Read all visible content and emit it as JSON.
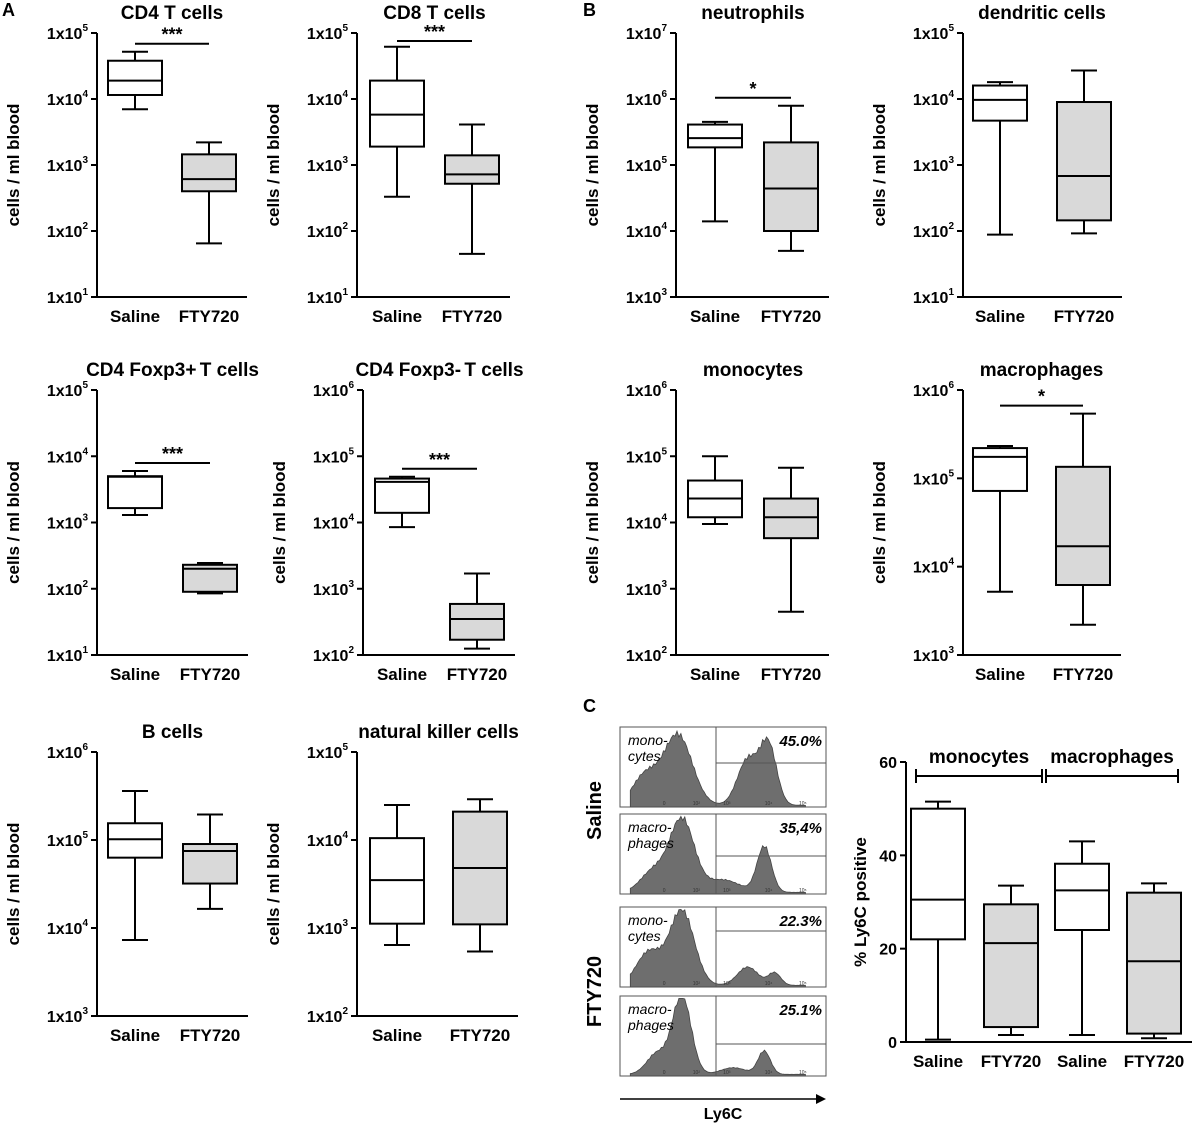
{
  "panel_letters": [
    "A",
    "B",
    "C"
  ],
  "chart_data": [
    {
      "type": "box",
      "panel": "A",
      "title": "CD4 T cells",
      "ylabel": "cells / ml blood",
      "yscale": "log",
      "ylim_exp": [
        1,
        5
      ],
      "ytick_labels": [
        "1x10^1",
        "1x10^2",
        "1x10^3",
        "1x10^4",
        "1x10^5"
      ],
      "categories": [
        "Saline",
        "FTY720"
      ],
      "series": [
        {
          "name": "Saline",
          "min": 7000,
          "q1": 11500,
          "median": 19000,
          "q3": 38000,
          "max": 52000,
          "fill": "#ffffff"
        },
        {
          "name": "FTY720",
          "min": 65,
          "q1": 400,
          "median": 610,
          "q3": 1450,
          "max": 2200,
          "fill": "#d9d9d9"
        }
      ],
      "significance": "***"
    },
    {
      "type": "box",
      "panel": "A",
      "title": "CD8 T cells",
      "ylabel": "cells / ml blood",
      "yscale": "log",
      "ylim_exp": [
        1,
        5
      ],
      "ytick_labels": [
        "1x10^1",
        "1x10^2",
        "1x10^3",
        "1x10^4",
        "1x10^5"
      ],
      "categories": [
        "Saline",
        "FTY720"
      ],
      "series": [
        {
          "name": "Saline",
          "min": 330,
          "q1": 1900,
          "median": 5800,
          "q3": 19000,
          "max": 62000,
          "fill": "#ffffff"
        },
        {
          "name": "FTY720",
          "min": 45,
          "q1": 520,
          "median": 720,
          "q3": 1400,
          "max": 4100,
          "fill": "#d9d9d9"
        }
      ],
      "significance": "***"
    },
    {
      "type": "box",
      "panel": "B",
      "title": "neutrophils",
      "ylabel": "cells / ml blood",
      "yscale": "log",
      "ylim_exp": [
        3,
        7
      ],
      "ytick_labels": [
        "1x10^3",
        "1x10^4",
        "1x10^5",
        "1x10^6",
        "1x10^7"
      ],
      "categories": [
        "Saline",
        "FTY720"
      ],
      "series": [
        {
          "name": "Saline",
          "min": 14000,
          "q1": 185000,
          "median": 255000,
          "q3": 410000,
          "max": 450000,
          "fill": "#ffffff"
        },
        {
          "name": "FTY720",
          "min": 5000,
          "q1": 10000,
          "median": 44000,
          "q3": 220000,
          "max": 790000,
          "fill": "#d9d9d9"
        }
      ],
      "significance": "*"
    },
    {
      "type": "box",
      "panel": "B",
      "title": "dendritic cells",
      "ylabel": "cells / ml blood",
      "yscale": "log",
      "ylim_exp": [
        1,
        5
      ],
      "ytick_labels": [
        "1x10^1",
        "1x10^2",
        "1x10^3",
        "1x10^4",
        "1x10^5"
      ],
      "categories": [
        "Saline",
        "FTY720"
      ],
      "series": [
        {
          "name": "Saline",
          "min": 88,
          "q1": 4700,
          "median": 9700,
          "q3": 16000,
          "max": 18000,
          "fill": "#ffffff"
        },
        {
          "name": "FTY720",
          "min": 92,
          "q1": 145,
          "median": 680,
          "q3": 9000,
          "max": 27000,
          "fill": "#d9d9d9"
        }
      ],
      "significance": ""
    },
    {
      "type": "box",
      "panel": "A",
      "title": "CD4 Foxp3+ T cells",
      "ylabel": "cells / ml blood",
      "yscale": "log",
      "ylim_exp": [
        1,
        5
      ],
      "ytick_labels": [
        "1x10^1",
        "1x10^2",
        "1x10^3",
        "1x10^4",
        "1x10^5"
      ],
      "categories": [
        "Saline",
        "FTY720"
      ],
      "series": [
        {
          "name": "Saline",
          "min": 1300,
          "q1": 1650,
          "median": 4900,
          "q3": 5000,
          "max": 6000,
          "fill": "#ffffff"
        },
        {
          "name": "FTY720",
          "min": 85,
          "q1": 90,
          "median": 200,
          "q3": 230,
          "max": 245,
          "fill": "#d9d9d9"
        }
      ],
      "significance": "***"
    },
    {
      "type": "box",
      "panel": "A",
      "title": "CD4 Foxp3- T cells",
      "ylabel": "cells / ml blood",
      "yscale": "log",
      "ylim_exp": [
        2,
        6
      ],
      "ytick_labels": [
        "1x10^2",
        "1x10^3",
        "1x10^4",
        "1x10^5",
        "1x10^6"
      ],
      "categories": [
        "Saline",
        "FTY720"
      ],
      "series": [
        {
          "name": "Saline",
          "min": 8500,
          "q1": 14000,
          "median": 41000,
          "q3": 46000,
          "max": 49000,
          "fill": "#ffffff"
        },
        {
          "name": "FTY720",
          "min": 125,
          "q1": 170,
          "median": 350,
          "q3": 590,
          "max": 1700,
          "fill": "#d9d9d9"
        }
      ],
      "significance": "***"
    },
    {
      "type": "box",
      "panel": "B",
      "title": "monocytes",
      "ylabel": "cells / ml blood",
      "yscale": "log",
      "ylim_exp": [
        2,
        6
      ],
      "ytick_labels": [
        "1x10^2",
        "1x10^3",
        "1x10^4",
        "1x10^5",
        "1x10^6"
      ],
      "categories": [
        "Saline",
        "FTY720"
      ],
      "series": [
        {
          "name": "Saline",
          "min": 9500,
          "q1": 12000,
          "median": 23000,
          "q3": 43000,
          "max": 100000,
          "fill": "#ffffff"
        },
        {
          "name": "FTY720",
          "min": 450,
          "q1": 5800,
          "median": 12000,
          "q3": 23000,
          "max": 67000,
          "fill": "#d9d9d9"
        }
      ],
      "significance": ""
    },
    {
      "type": "box",
      "panel": "B",
      "title": "macrophages",
      "ylabel": "cells / ml blood",
      "yscale": "log",
      "ylim_exp": [
        3,
        6
      ],
      "ytick_labels": [
        "1x10^3",
        "1x10^4",
        "1x10^5",
        "1x10^6"
      ],
      "categories": [
        "Saline",
        "FTY720"
      ],
      "series": [
        {
          "name": "Saline",
          "min": 5200,
          "q1": 72000,
          "median": 175000,
          "q3": 220000,
          "max": 232000,
          "fill": "#ffffff"
        },
        {
          "name": "FTY720",
          "min": 2200,
          "q1": 6200,
          "median": 17000,
          "q3": 135000,
          "max": 540000,
          "fill": "#d9d9d9"
        }
      ],
      "significance": "*"
    },
    {
      "type": "box",
      "panel": "A",
      "title": "B cells",
      "ylabel": "cells / ml blood",
      "yscale": "log",
      "ylim_exp": [
        3,
        6
      ],
      "ytick_labels": [
        "1x10^3",
        "1x10^4",
        "1x10^5",
        "1x10^6"
      ],
      "categories": [
        "Saline",
        "FTY720"
      ],
      "series": [
        {
          "name": "Saline",
          "min": 7300,
          "q1": 63000,
          "median": 102000,
          "q3": 155000,
          "max": 360000,
          "fill": "#ffffff"
        },
        {
          "name": "FTY720",
          "min": 16500,
          "q1": 32000,
          "median": 75000,
          "q3": 90000,
          "max": 195000,
          "fill": "#d9d9d9"
        }
      ],
      "significance": ""
    },
    {
      "type": "box",
      "panel": "A",
      "title": "natural killer cells",
      "ylabel": "cells / ml blood",
      "yscale": "log",
      "ylim_exp": [
        2,
        5
      ],
      "ytick_labels": [
        "1x10^2",
        "1x10^3",
        "1x10^4",
        "1x10^5"
      ],
      "categories": [
        "Saline",
        "FTY720"
      ],
      "series": [
        {
          "name": "Saline",
          "min": 640,
          "q1": 1120,
          "median": 3500,
          "q3": 10500,
          "max": 25000,
          "fill": "#ffffff"
        },
        {
          "name": "FTY720",
          "min": 540,
          "q1": 1100,
          "median": 4800,
          "q3": 21000,
          "max": 29000,
          "fill": "#d9d9d9"
        }
      ],
      "significance": ""
    },
    {
      "type": "box",
      "panel": "C",
      "title": "",
      "ylabel": "% Ly6C positive",
      "yscale": "linear",
      "ylim": [
        0,
        60
      ],
      "ytick_labels": [
        "0",
        "20",
        "40",
        "60"
      ],
      "categories": [
        "Saline",
        "FTY720",
        "Saline",
        "FTY720"
      ],
      "group_labels": [
        "monocytes",
        "macrophages"
      ],
      "series": [
        {
          "name": "Saline monocytes",
          "min": 0.5,
          "q1": 22,
          "median": 30.5,
          "q3": 50,
          "max": 51.5,
          "fill": "#ffffff"
        },
        {
          "name": "FTY720 monocytes",
          "min": 1.5,
          "q1": 3.2,
          "median": 21.2,
          "q3": 29.5,
          "max": 33.5,
          "fill": "#d9d9d9"
        },
        {
          "name": "Saline macrophages",
          "min": 1.5,
          "q1": 24,
          "median": 32.5,
          "q3": 38.2,
          "max": 43,
          "fill": "#ffffff"
        },
        {
          "name": "FTY720 macrophages",
          "min": 0.8,
          "q1": 1.8,
          "median": 17.3,
          "q3": 32,
          "max": 34,
          "fill": "#d9d9d9"
        }
      ]
    }
  ],
  "flow_cytometry": {
    "x_axis_label": "Ly6C",
    "group_labels": [
      "Saline",
      "FTY720"
    ],
    "tick_labels": [
      "0",
      "10²",
      "10³",
      "10⁴",
      "10⁵"
    ],
    "panels": [
      {
        "group": "Saline",
        "label": [
          "mono-",
          "cytes"
        ],
        "percent": "45.0%"
      },
      {
        "group": "Saline",
        "label": [
          "macro-",
          "phages"
        ],
        "percent": "35,4%"
      },
      {
        "group": "FTY720",
        "label": [
          "mono-",
          "cytes"
        ],
        "percent": "22.3%"
      },
      {
        "group": "FTY720",
        "label": [
          "macro-",
          "phages"
        ],
        "percent": "25.1%"
      }
    ]
  }
}
